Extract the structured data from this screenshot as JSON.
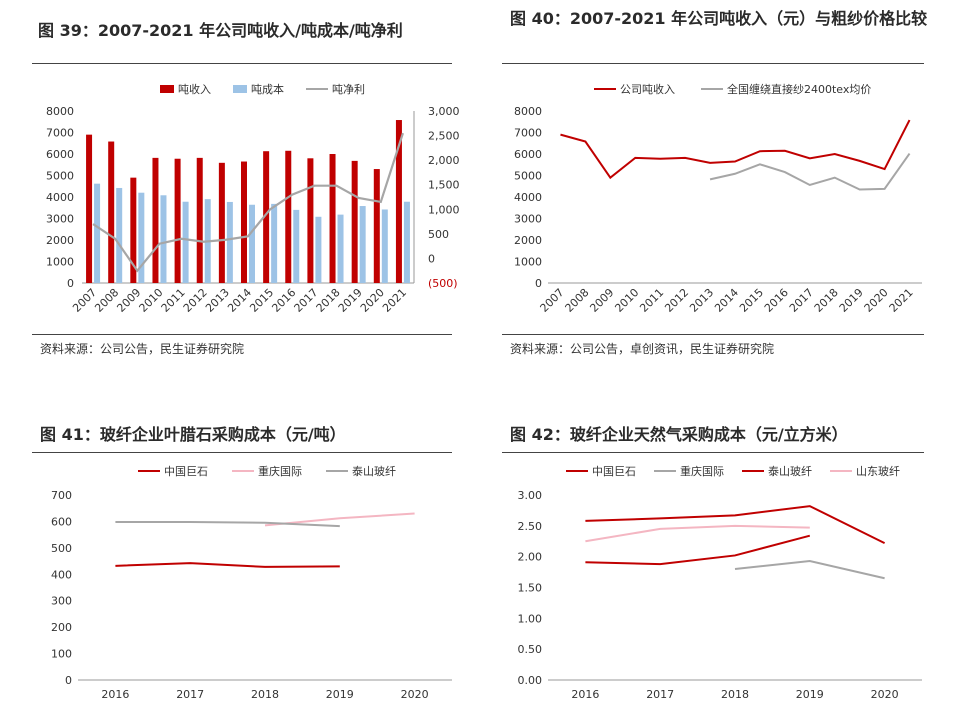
{
  "colors": {
    "red": "#C00000",
    "lightblue": "#9DC3E6",
    "gray": "#A6A6A6",
    "pink": "#F4B6C2",
    "negative": "#C00000"
  },
  "panels": [
    {
      "id": "fig39",
      "title": "图 39：2007-2021 年公司吨收入/吨成本/吨净利",
      "source": "资料来源：公司公告，民生证券研究院"
    },
    {
      "id": "fig40",
      "title": "图 40：2007-2021 年公司吨收入（元）与粗纱价格比较",
      "source": "资料来源：公司公告，卓创资讯，民生证券研究院"
    },
    {
      "id": "fig41",
      "title": "图 41：玻纤企业叶腊石采购成本（元/吨）",
      "source": ""
    },
    {
      "id": "fig42",
      "title": "图 42：玻纤企业天然气采购成本（元/立方米）",
      "source": ""
    }
  ],
  "chart_data": [
    {
      "type": "bar",
      "categories": [
        "2007",
        "2008",
        "2009",
        "2010",
        "2011",
        "2012",
        "2013",
        "2014",
        "2015",
        "2016",
        "2017",
        "2018",
        "2019",
        "2020",
        "2021"
      ],
      "series": [
        {
          "name": "吨收入",
          "type": "bar",
          "axis": "left",
          "values": [
            6900,
            6580,
            4900,
            5820,
            5780,
            5820,
            5590,
            5650,
            6130,
            6150,
            5800,
            6000,
            5680,
            5300,
            7580
          ]
        },
        {
          "name": "吨成本",
          "type": "bar",
          "axis": "left",
          "values": [
            4620,
            4420,
            4200,
            4080,
            3780,
            3900,
            3770,
            3640,
            3680,
            3400,
            3080,
            3180,
            3580,
            3420,
            3780
          ]
        },
        {
          "name": "吨净利",
          "type": "line",
          "axis": "right",
          "values": [
            700,
            400,
            -250,
            300,
            400,
            340,
            380,
            450,
            1000,
            1300,
            1480,
            1480,
            1230,
            1150,
            2550
          ]
        }
      ],
      "yticks_left": [
        "0",
        "1000",
        "2000",
        "3000",
        "4000",
        "5000",
        "6000",
        "7000",
        "8000"
      ],
      "ylim_left": [
        0,
        8000
      ],
      "yticks_right": [
        "(500)",
        "0",
        "500",
        "1,000",
        "1,500",
        "2,000",
        "2,500",
        "3,000"
      ],
      "ylim_right": [
        -500,
        3000
      ],
      "legend": "top-center",
      "grid": false
    },
    {
      "type": "line",
      "categories": [
        "2007",
        "2008",
        "2009",
        "2010",
        "2011",
        "2012",
        "2013",
        "2014",
        "2015",
        "2016",
        "2017",
        "2018",
        "2019",
        "2020",
        "2021"
      ],
      "series": [
        {
          "name": "公司吨收入",
          "values": [
            6900,
            6580,
            4900,
            5820,
            5780,
            5820,
            5590,
            5650,
            6130,
            6150,
            5800,
            6000,
            5680,
            5300,
            7580
          ]
        },
        {
          "name": "全国缠绕直接纱2400tex均价",
          "values": [
            null,
            null,
            null,
            null,
            null,
            null,
            4820,
            5080,
            5520,
            5160,
            4560,
            4900,
            4350,
            4380,
            6020
          ]
        }
      ],
      "yticks": [
        "0",
        "1000",
        "2000",
        "3000",
        "4000",
        "5000",
        "6000",
        "7000",
        "8000"
      ],
      "ylim": [
        0,
        8000
      ],
      "legend": "top-center",
      "grid": false
    },
    {
      "type": "line",
      "categories": [
        "2016",
        "2017",
        "2018",
        "2019",
        "2020"
      ],
      "series": [
        {
          "name": "中国巨石",
          "values": [
            432,
            442,
            428,
            430,
            null
          ]
        },
        {
          "name": "重庆国际",
          "values": [
            null,
            null,
            585,
            612,
            630
          ]
        },
        {
          "name": "泰山玻纤",
          "values": [
            598,
            598,
            595,
            582,
            null
          ]
        }
      ],
      "yticks": [
        "0",
        "100",
        "200",
        "300",
        "400",
        "500",
        "600",
        "700"
      ],
      "ylim": [
        0,
        700
      ],
      "legend": "top-center",
      "grid": false
    },
    {
      "type": "line",
      "categories": [
        "2016",
        "2017",
        "2018",
        "2019",
        "2020"
      ],
      "series": [
        {
          "name": "中国巨石",
          "values": [
            2.58,
            2.62,
            2.67,
            2.82,
            2.22
          ]
        },
        {
          "name": "重庆国际",
          "values": [
            null,
            null,
            1.8,
            1.93,
            1.65
          ]
        },
        {
          "name": "泰山玻纤",
          "values": [
            1.91,
            1.88,
            2.02,
            2.34,
            null
          ]
        },
        {
          "name": "山东玻纤",
          "values": [
            2.25,
            2.45,
            2.5,
            2.47,
            null
          ]
        }
      ],
      "yticks": [
        "0.00",
        "0.50",
        "1.00",
        "1.50",
        "2.00",
        "2.50",
        "3.00"
      ],
      "ylim": [
        0,
        3
      ],
      "legend": "top-center",
      "grid": false
    }
  ]
}
